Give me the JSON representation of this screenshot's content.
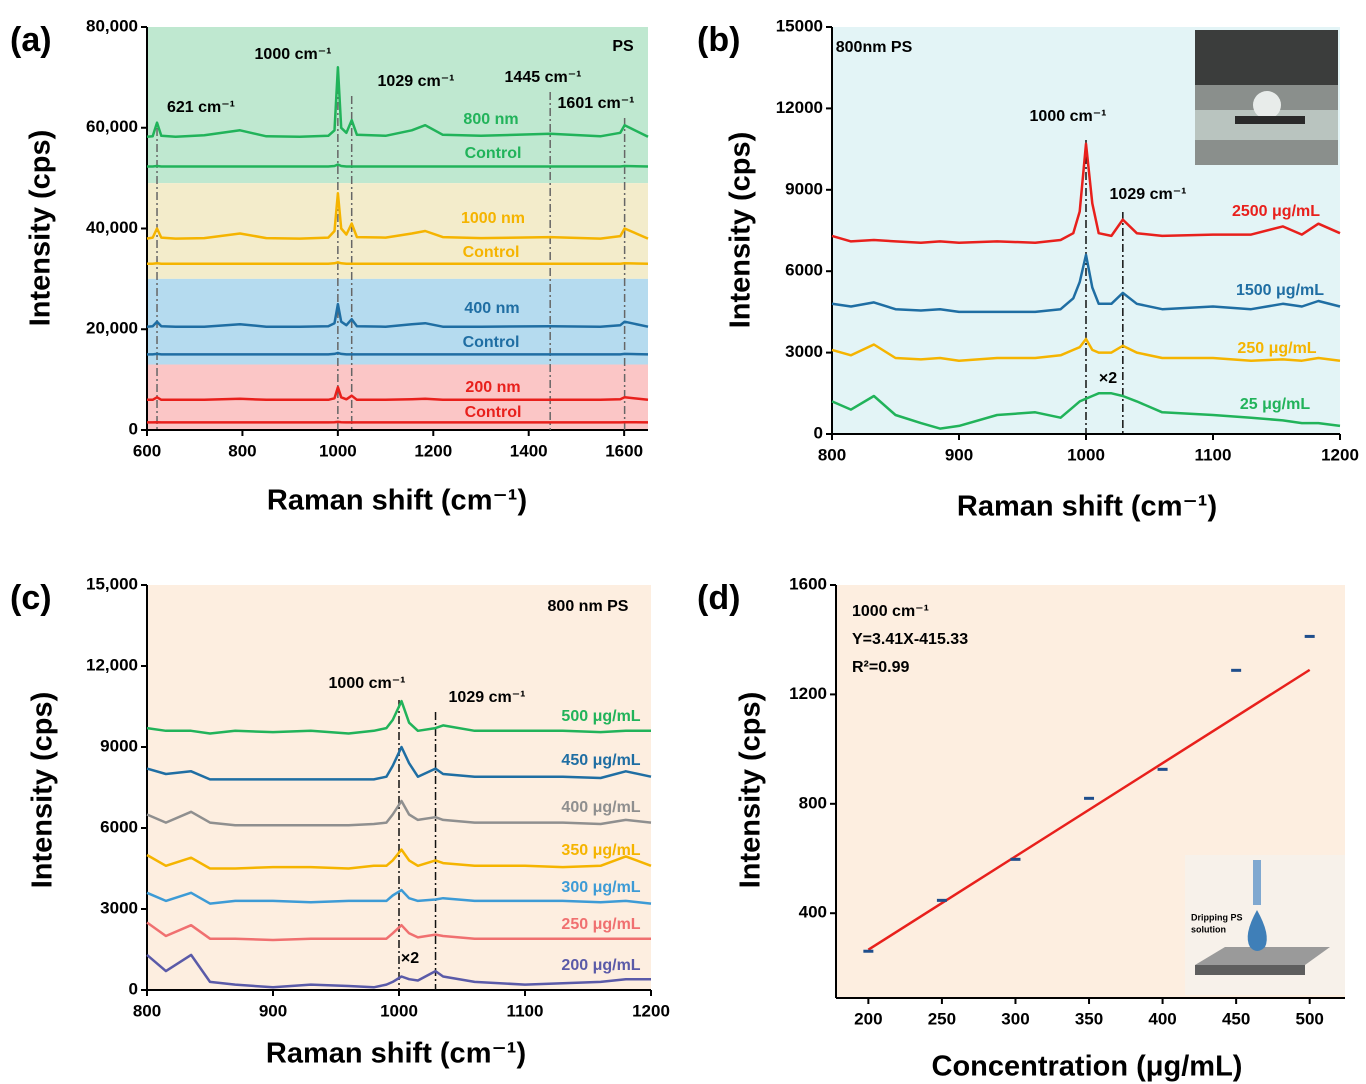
{
  "chart_data": [
    {
      "type": "line",
      "label": "(a)",
      "xlabel": "Raman shift (cm⁻¹)",
      "ylabel": "Intensity (cps)",
      "xlim": [
        600,
        1650
      ],
      "ylim": [
        0,
        80000
      ],
      "xticks": [
        600,
        800,
        1000,
        1200,
        1400,
        1600
      ],
      "yticks": [
        0,
        {
          "value": 20000,
          "label": "20,000"
        },
        {
          "value": 40000,
          "label": "40,000"
        },
        {
          "value": 60000,
          "label": "60,000"
        },
        {
          "value": 80000,
          "label": "80,000"
        }
      ],
      "bands": [
        {
          "from": 49000,
          "to": 80000,
          "color": "#bfe8d0"
        },
        {
          "from": 30000,
          "to": 49000,
          "color": "#f3eccb"
        },
        {
          "from": 13000,
          "to": 30000,
          "color": "#b5dbef"
        },
        {
          "from": 0,
          "to": 13000,
          "color": "#fbc6c6"
        }
      ],
      "annotations": [
        "621 cm⁻¹",
        "1000 cm⁻¹",
        "1029 cm⁻¹",
        "1445 cm⁻¹",
        "1601 cm⁻¹",
        "PS"
      ],
      "vlines": [
        621,
        1000,
        1029,
        1445,
        1601
      ],
      "x": [
        600,
        612,
        621,
        630,
        660,
        720,
        795,
        850,
        920,
        980,
        993,
        1000,
        1007,
        1018,
        1029,
        1040,
        1100,
        1155,
        1183,
        1220,
        1300,
        1445,
        1550,
        1592,
        1601,
        1650
      ],
      "series": [
        {
          "name": "800 nm",
          "color": "#21b35a",
          "values": [
            58200,
            58300,
            61000,
            58400,
            58200,
            58500,
            59500,
            58300,
            58200,
            58400,
            59500,
            72000,
            60000,
            59000,
            61500,
            58600,
            58400,
            59500,
            60500,
            58600,
            58400,
            58800,
            58300,
            59000,
            60500,
            58200
          ]
        },
        {
          "name": "Control",
          "color": "#21b35a",
          "values": [
            52300,
            52300,
            52400,
            52300,
            52300,
            52300,
            52300,
            52300,
            52300,
            52300,
            52400,
            52700,
            52400,
            52300,
            52300,
            52300,
            52300,
            52300,
            52300,
            52300,
            52300,
            52300,
            52300,
            52300,
            52400,
            52300
          ]
        },
        {
          "name": "1000 nm",
          "color": "#f5b400",
          "values": [
            38000,
            38200,
            40000,
            38200,
            38000,
            38100,
            39000,
            38100,
            38000,
            38200,
            39500,
            47000,
            40000,
            38800,
            41000,
            38300,
            38200,
            39000,
            39500,
            38300,
            38100,
            38300,
            38000,
            38500,
            40000,
            38000
          ]
        },
        {
          "name": "Control",
          "color": "#f5b400",
          "values": [
            33000,
            33000,
            33100,
            33000,
            33000,
            33000,
            33000,
            33000,
            33000,
            33000,
            33100,
            33300,
            33100,
            33000,
            33000,
            33000,
            33000,
            33000,
            33000,
            33000,
            33000,
            33000,
            33000,
            33000,
            33100,
            33000
          ]
        },
        {
          "name": "400 nm",
          "color": "#1f6ea3",
          "values": [
            20500,
            20600,
            21500,
            20600,
            20500,
            20500,
            21000,
            20500,
            20500,
            20600,
            21200,
            25000,
            21500,
            20800,
            22000,
            20600,
            20500,
            21000,
            21200,
            20500,
            20500,
            20600,
            20500,
            20800,
            21500,
            20500
          ]
        },
        {
          "name": "Control",
          "color": "#1f6ea3",
          "values": [
            15000,
            15000,
            15100,
            15000,
            15000,
            15000,
            15000,
            15000,
            15000,
            15000,
            15100,
            15300,
            15100,
            15000,
            15000,
            15000,
            15000,
            15000,
            15000,
            15000,
            15000,
            15000,
            15000,
            15000,
            15100,
            15000
          ]
        },
        {
          "name": "200 nm",
          "color": "#e8201c",
          "values": [
            6000,
            6000,
            6500,
            6000,
            6000,
            6000,
            6200,
            6000,
            6000,
            6000,
            6300,
            8500,
            6500,
            6100,
            6800,
            6000,
            6000,
            6100,
            6200,
            6000,
            6000,
            6000,
            6000,
            6100,
            6500,
            6000
          ]
        },
        {
          "name": "Control",
          "color": "#e8201c",
          "values": [
            1500,
            1500,
            1550,
            1500,
            1500,
            1500,
            1500,
            1500,
            1500,
            1500,
            1550,
            1600,
            1550,
            1500,
            1500,
            1500,
            1500,
            1500,
            1500,
            1500,
            1500,
            1500,
            1500,
            1500,
            1550,
            1500
          ]
        }
      ]
    },
    {
      "type": "line",
      "label": "(b)",
      "xlabel": "Raman shift (cm⁻¹)",
      "ylabel": "Intensity (cps)",
      "xlim": [
        800,
        1200
      ],
      "ylim": [
        0,
        15000
      ],
      "xticks": [
        800,
        900,
        1000,
        1100,
        1200
      ],
      "yticks": [
        0,
        3000,
        6000,
        9000,
        12000,
        15000
      ],
      "background": "#e3f4f6",
      "annotations": [
        "800nm PS",
        "1000 cm⁻¹",
        "1029 cm⁻¹",
        "×2"
      ],
      "vlines": [
        1000,
        1029
      ],
      "x": [
        800,
        815,
        833,
        850,
        870,
        885,
        900,
        930,
        960,
        980,
        990,
        995,
        1000,
        1005,
        1010,
        1020,
        1029,
        1040,
        1060,
        1100,
        1130,
        1155,
        1170,
        1183,
        1200
      ],
      "series": [
        {
          "name": "2500 μg/mL",
          "color": "#e8201c",
          "values": [
            7300,
            7100,
            7150,
            7100,
            7050,
            7100,
            7050,
            7100,
            7050,
            7150,
            7400,
            8200,
            10700,
            8500,
            7400,
            7300,
            7900,
            7400,
            7300,
            7350,
            7350,
            7650,
            7350,
            7750,
            7400
          ]
        },
        {
          "name": "1500 μg/mL",
          "color": "#1f6ea3",
          "values": [
            4800,
            4700,
            4850,
            4600,
            4550,
            4600,
            4500,
            4500,
            4500,
            4600,
            5000,
            5600,
            6600,
            5400,
            4800,
            4800,
            5200,
            4800,
            4600,
            4700,
            4600,
            4800,
            4700,
            4900,
            4700
          ]
        },
        {
          "name": "250 μg/mL",
          "color": "#f5b400",
          "values": [
            3100,
            2900,
            3300,
            2800,
            2750,
            2800,
            2700,
            2800,
            2800,
            2900,
            3100,
            3200,
            3500,
            3100,
            3000,
            3000,
            3250,
            3000,
            2800,
            2800,
            2700,
            2750,
            2700,
            2800,
            2700
          ]
        },
        {
          "name": "25 μg/mL",
          "color": "#21b35a",
          "values": [
            1200,
            900,
            1400,
            700,
            400,
            200,
            300,
            700,
            800,
            600,
            1000,
            1200,
            1300,
            1400,
            1500,
            1500,
            1400,
            1200,
            800,
            700,
            600,
            500,
            400,
            400,
            300
          ]
        }
      ]
    },
    {
      "type": "line",
      "label": "(c)",
      "xlabel": "Raman shift (cm⁻¹)",
      "ylabel": "Intensity (cps)",
      "xlim": [
        800,
        1200
      ],
      "ylim": [
        0,
        15000
      ],
      "xticks": [
        800,
        900,
        1000,
        1100,
        1200
      ],
      "yticks": [
        0,
        3000,
        6000,
        9000,
        {
          "value": 12000,
          "label": "12,000"
        },
        {
          "value": 15000,
          "label": "15,000"
        }
      ],
      "background": "#fdeee0",
      "annotations": [
        "800 nm PS",
        "1000 cm⁻¹",
        "1029 cm⁻¹",
        "×2"
      ],
      "vlines": [
        1000,
        1029
      ],
      "x": [
        800,
        815,
        835,
        850,
        870,
        900,
        930,
        960,
        980,
        990,
        995,
        1002,
        1008,
        1015,
        1029,
        1035,
        1060,
        1100,
        1130,
        1160,
        1180,
        1200
      ],
      "series": [
        {
          "name": "500 μg/mL",
          "color": "#21b35a",
          "values": [
            9700,
            9600,
            9600,
            9500,
            9600,
            9550,
            9600,
            9500,
            9600,
            9700,
            10000,
            10700,
            9900,
            9600,
            9700,
            9800,
            9600,
            9600,
            9600,
            9550,
            9600,
            9600
          ]
        },
        {
          "name": "450 μg/mL",
          "color": "#1f6ea3",
          "values": [
            8200,
            8000,
            8100,
            7800,
            7800,
            7800,
            7800,
            7800,
            7800,
            7900,
            8300,
            9000,
            8400,
            7900,
            8200,
            8000,
            7900,
            7900,
            7900,
            7850,
            8100,
            7900
          ]
        },
        {
          "name": "400 μg/mL",
          "color": "#8f8f8f",
          "values": [
            6500,
            6200,
            6600,
            6200,
            6100,
            6100,
            6100,
            6100,
            6150,
            6200,
            6500,
            7000,
            6500,
            6300,
            6400,
            6300,
            6200,
            6200,
            6200,
            6150,
            6300,
            6200
          ]
        },
        {
          "name": "350 μg/mL",
          "color": "#f5b400",
          "values": [
            5000,
            4600,
            4900,
            4500,
            4500,
            4550,
            4550,
            4500,
            4600,
            4600,
            4800,
            5200,
            4800,
            4600,
            4800,
            4700,
            4600,
            4600,
            4550,
            4600,
            4950,
            4600
          ]
        },
        {
          "name": "300 μg/mL",
          "color": "#3d9bd6",
          "values": [
            3600,
            3300,
            3600,
            3200,
            3300,
            3300,
            3250,
            3300,
            3300,
            3300,
            3500,
            3700,
            3400,
            3300,
            3350,
            3400,
            3300,
            3300,
            3300,
            3250,
            3300,
            3200
          ]
        },
        {
          "name": "250 μg/mL",
          "color": "#f07070",
          "values": [
            2500,
            2000,
            2400,
            1900,
            1900,
            1850,
            1900,
            1900,
            1900,
            1900,
            2100,
            2400,
            2100,
            1950,
            2050,
            2000,
            1900,
            1900,
            1900,
            1900,
            1900,
            1900
          ]
        },
        {
          "name": "200 μg/mL",
          "color": "#5a5aa8",
          "values": [
            1300,
            700,
            1300,
            300,
            200,
            100,
            200,
            150,
            100,
            200,
            300,
            500,
            400,
            350,
            700,
            500,
            300,
            200,
            250,
            300,
            400,
            400
          ]
        }
      ]
    },
    {
      "type": "scatter",
      "label": "(d)",
      "xlabel": "Concentration (μg/mL)",
      "ylabel": "Intensity (cps)",
      "xlim": [
        178,
        524
      ],
      "ylim": [
        90,
        1600
      ],
      "xticks": [
        200,
        250,
        300,
        350,
        400,
        450,
        500
      ],
      "yticks": [
        400,
        800,
        1200,
        1600
      ],
      "background": "#fdeee0",
      "annotations": [
        "1000 cm⁻¹",
        "Y=3.41X-415.33",
        "R²=0.99",
        "Dripping PS",
        "solution"
      ],
      "x": [
        200,
        250,
        300,
        350,
        400,
        450,
        500
      ],
      "values": [
        261,
        447,
        597,
        820,
        926,
        1288,
        1412
      ],
      "color": "#1f4e8c",
      "fit": {
        "slope": 3.41,
        "intercept": -415.33,
        "from": 200,
        "to": 500,
        "color": "#e8201c"
      }
    }
  ]
}
